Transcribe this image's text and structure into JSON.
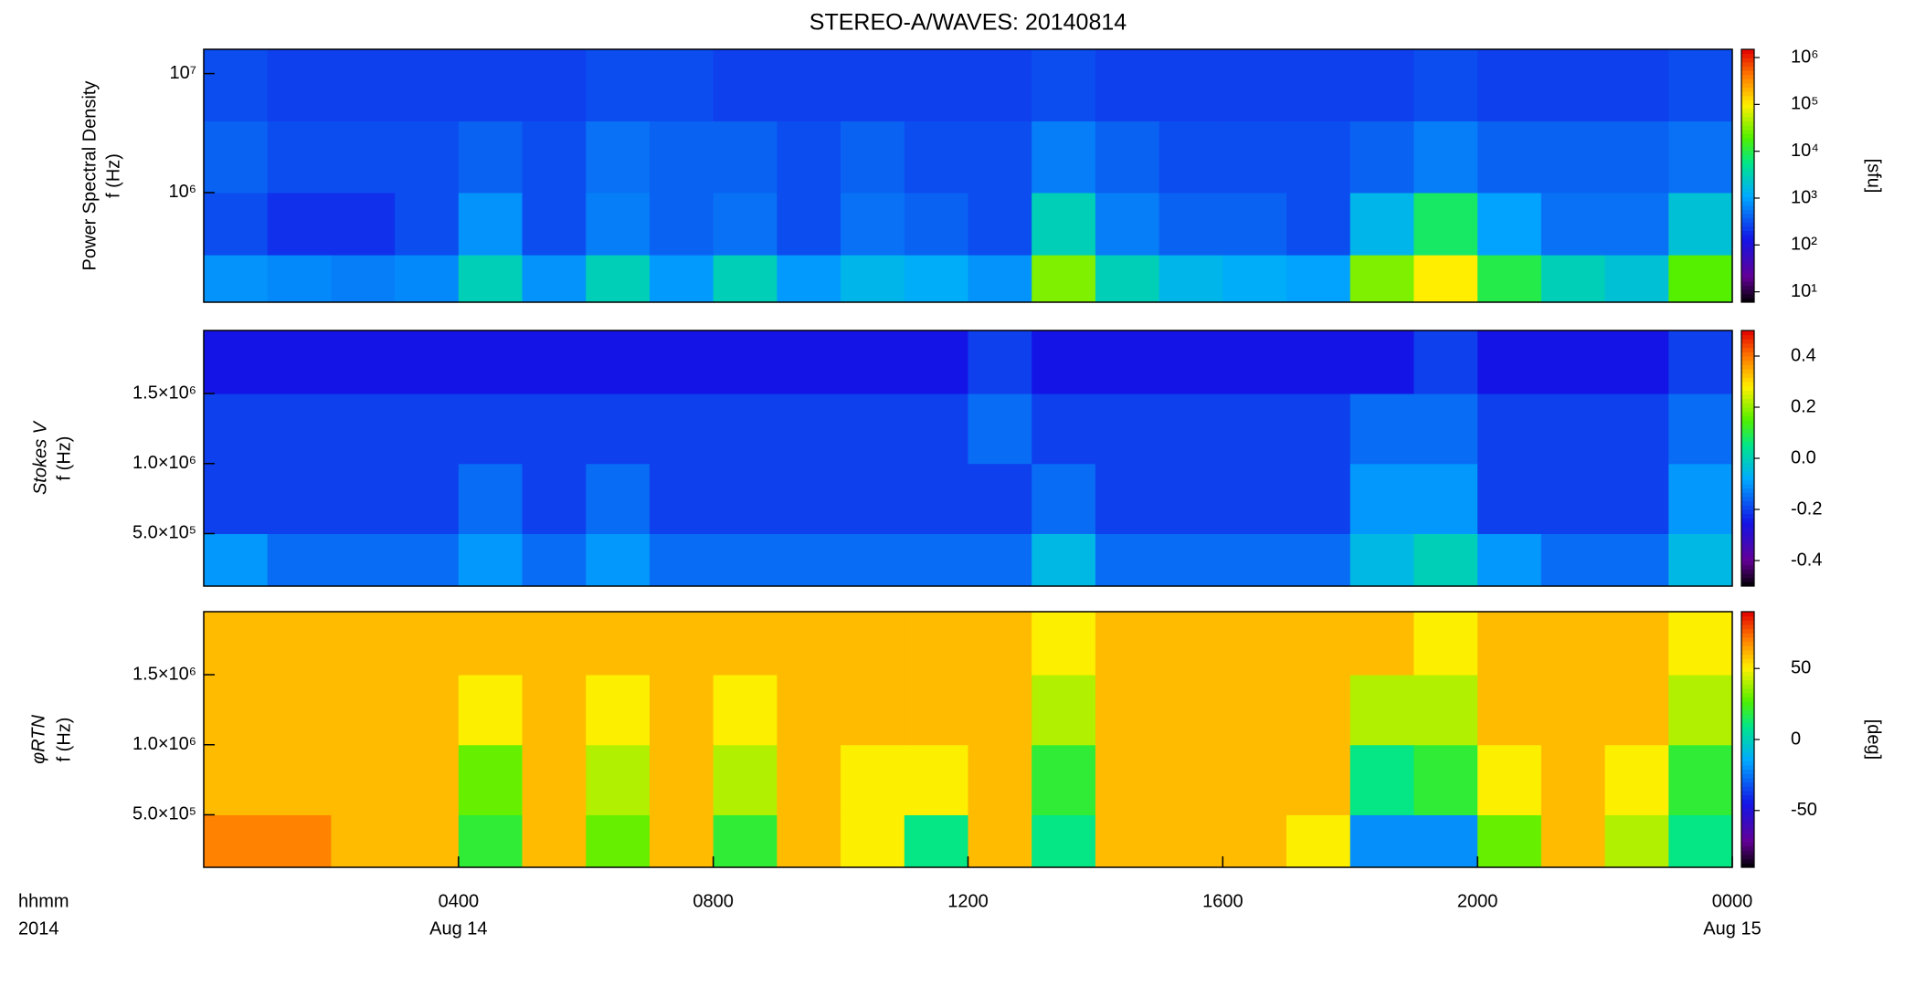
{
  "chart_data": [
    {
      "type": "heatmap",
      "title": "STEREO-A/WAVES: 20140814",
      "ylabel": [
        "Power Spectral Density",
        "f (Hz)"
      ],
      "colorbar_label": "[sfu]",
      "ylog": true,
      "ylim": [
        120000,
        16000000
      ],
      "yticks": [
        {
          "value": 1000000,
          "label": "10⁶"
        },
        {
          "value": 10000000,
          "label": "10⁷"
        }
      ],
      "xlim": [
        0,
        24
      ],
      "x_bins": [
        0,
        1,
        2,
        3,
        4,
        5,
        6,
        7,
        8,
        9,
        10,
        11,
        12,
        13,
        14,
        15,
        16,
        17,
        18,
        19,
        20,
        21,
        22,
        23,
        24
      ],
      "y_bins": [
        120000,
        300000,
        1000000,
        4000000,
        16000000
      ],
      "zscale": "log",
      "zlim": [
        6,
        1500000
      ],
      "zticks": [
        {
          "value": 10,
          "label": "10¹"
        },
        {
          "value": 100,
          "label": "10²"
        },
        {
          "value": 1000,
          "label": "10³"
        },
        {
          "value": 10000,
          "label": "10⁴"
        },
        {
          "value": 100000,
          "label": "10⁵"
        },
        {
          "value": 1000000,
          "label": "10⁶"
        }
      ],
      "z": [
        [
          800,
          700,
          600,
          700,
          3000,
          800,
          3000,
          900,
          3000,
          900,
          1500,
          1200,
          800,
          30000,
          3000,
          1500,
          1200,
          1000,
          30000,
          100000,
          10000,
          3000,
          2000,
          20000
        ],
        [
          300,
          200,
          200,
          300,
          800,
          300,
          600,
          400,
          500,
          300,
          500,
          400,
          300,
          3000,
          600,
          400,
          400,
          300,
          1500,
          8000,
          1000,
          500,
          500,
          2000
        ],
        [
          400,
          300,
          300,
          300,
          400,
          300,
          500,
          400,
          400,
          300,
          400,
          300,
          300,
          600,
          400,
          300,
          300,
          300,
          400,
          600,
          400,
          400,
          400,
          500
        ],
        [
          300,
          250,
          250,
          250,
          250,
          250,
          300,
          300,
          250,
          250,
          250,
          250,
          250,
          300,
          250,
          250,
          250,
          250,
          250,
          300,
          250,
          250,
          250,
          300
        ]
      ]
    },
    {
      "type": "heatmap",
      "ylabel": [
        "Stokes V",
        "f (Hz)"
      ],
      "ylog": false,
      "ylim": [
        125000,
        1950000
      ],
      "yticks": [
        {
          "value": 500000,
          "label": "5.0×10⁵"
        },
        {
          "value": 1000000,
          "label": "1.0×10⁶"
        },
        {
          "value": 1500000,
          "label": "1.5×10⁶"
        }
      ],
      "xlim": [
        0,
        24
      ],
      "x_bins": [
        0,
        1,
        2,
        3,
        4,
        5,
        6,
        7,
        8,
        9,
        10,
        11,
        12,
        13,
        14,
        15,
        16,
        17,
        18,
        19,
        20,
        21,
        22,
        23,
        24
      ],
      "y_bins": [
        125000,
        500000,
        1000000,
        1500000,
        1950000
      ],
      "zscale": "linear",
      "zlim": [
        -0.5,
        0.5
      ],
      "zticks": [
        -0.4,
        -0.2,
        {
          "value": 0,
          "label": "0.0"
        },
        0.2,
        0.4
      ],
      "z": [
        [
          -0.1,
          -0.15,
          -0.15,
          -0.15,
          -0.1,
          -0.15,
          -0.1,
          -0.15,
          -0.15,
          -0.15,
          -0.15,
          -0.15,
          -0.15,
          -0.05,
          -0.15,
          -0.15,
          -0.15,
          -0.15,
          -0.05,
          0,
          -0.1,
          -0.15,
          -0.15,
          -0.05
        ],
        [
          -0.2,
          -0.2,
          -0.2,
          -0.2,
          -0.15,
          -0.2,
          -0.15,
          -0.2,
          -0.2,
          -0.2,
          -0.2,
          -0.2,
          -0.2,
          -0.15,
          -0.2,
          -0.2,
          -0.2,
          -0.2,
          -0.1,
          -0.1,
          -0.2,
          -0.2,
          -0.2,
          -0.1
        ],
        [
          -0.2,
          -0.2,
          -0.2,
          -0.2,
          -0.2,
          -0.2,
          -0.2,
          -0.2,
          -0.2,
          -0.2,
          -0.2,
          -0.2,
          -0.15,
          -0.2,
          -0.2,
          -0.2,
          -0.2,
          -0.2,
          -0.15,
          -0.15,
          -0.2,
          -0.2,
          -0.2,
          -0.15
        ],
        [
          -0.25,
          -0.25,
          -0.25,
          -0.25,
          -0.25,
          -0.25,
          -0.25,
          -0.25,
          -0.25,
          -0.25,
          -0.25,
          -0.25,
          -0.2,
          -0.25,
          -0.25,
          -0.25,
          -0.25,
          -0.25,
          -0.25,
          -0.2,
          -0.25,
          -0.25,
          -0.25,
          -0.2
        ]
      ]
    },
    {
      "type": "heatmap",
      "ylabel": [
        "φRTN",
        "f (Hz)"
      ],
      "colorbar_label": "[deg]",
      "xlabel": [
        "hhmm",
        "2014"
      ],
      "ylog": false,
      "ylim": [
        125000,
        1950000
      ],
      "yticks": [
        {
          "value": 500000,
          "label": "5.0×10⁵"
        },
        {
          "value": 1000000,
          "label": "1.0×10⁶"
        },
        {
          "value": 1500000,
          "label": "1.5×10⁶"
        }
      ],
      "xlim": [
        0,
        24
      ],
      "xticks": [
        {
          "value": 4,
          "label": "0400"
        },
        {
          "value": 8,
          "label": "0800"
        },
        {
          "value": 12,
          "label": "1200"
        },
        {
          "value": 16,
          "label": "1600"
        },
        {
          "value": 20,
          "label": "2000"
        },
        {
          "value": 24,
          "label": "0000"
        }
      ],
      "date_labels": [
        {
          "value": 4,
          "label": "Aug 14"
        },
        {
          "value": 24,
          "label": "Aug 15"
        }
      ],
      "x_bins": [
        0,
        1,
        2,
        3,
        4,
        5,
        6,
        7,
        8,
        9,
        10,
        11,
        12,
        13,
        14,
        15,
        16,
        17,
        18,
        19,
        20,
        21,
        22,
        23,
        24
      ],
      "y_bins": [
        125000,
        500000,
        1000000,
        1500000,
        1950000
      ],
      "zscale": "linear",
      "zlim": [
        -90,
        90
      ],
      "zticks": [
        -50,
        0,
        50
      ],
      "z": [
        [
          70,
          70,
          60,
          60,
          20,
          60,
          30,
          60,
          20,
          60,
          50,
          10,
          60,
          10,
          60,
          60,
          60,
          50,
          -20,
          -20,
          30,
          60,
          40,
          10
        ],
        [
          60,
          60,
          60,
          60,
          30,
          60,
          40,
          60,
          40,
          60,
          50,
          50,
          60,
          20,
          60,
          60,
          60,
          60,
          10,
          20,
          50,
          60,
          50,
          20
        ],
        [
          60,
          60,
          60,
          60,
          50,
          60,
          50,
          60,
          50,
          60,
          60,
          60,
          60,
          40,
          60,
          60,
          60,
          60,
          40,
          40,
          60,
          60,
          60,
          40
        ],
        [
          60,
          60,
          60,
          60,
          60,
          60,
          60,
          60,
          60,
          60,
          60,
          60,
          60,
          50,
          60,
          60,
          60,
          60,
          60,
          50,
          60,
          60,
          60,
          50
        ]
      ]
    }
  ]
}
